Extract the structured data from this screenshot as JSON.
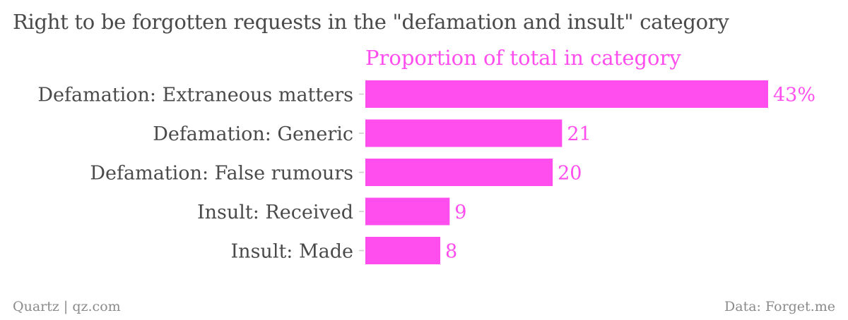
{
  "title": "Right to be forgotten requests in the \"defamation and insult\" category",
  "footer": {
    "credit": "Quartz | qz.com",
    "source": "Data: Forget.me"
  },
  "colors": {
    "bar": "#ff4dee",
    "label": "#4a4a4a",
    "axis": "#cccccc",
    "footer": "#8a8a8a"
  },
  "chart_data": {
    "type": "bar",
    "orientation": "horizontal",
    "series": [
      {
        "name": "Proportion of total in category",
        "values": [
          43,
          21,
          20,
          9,
          8
        ],
        "value_labels": [
          "43%",
          "21",
          "20",
          "9",
          "8"
        ]
      }
    ],
    "categories": [
      "Defamation: Extraneous matters",
      "Defamation: Generic",
      "Defamation: False rumours",
      "Insult: Received",
      "Insult: Made"
    ],
    "xlim": [
      0,
      43
    ],
    "grid": false,
    "legend": "top"
  }
}
